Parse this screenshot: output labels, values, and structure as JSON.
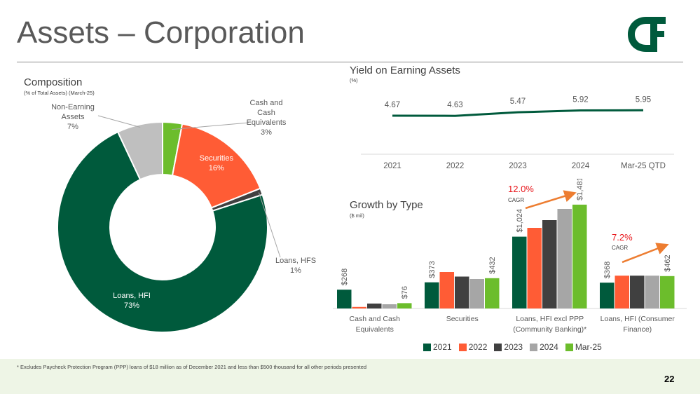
{
  "slide": {
    "title": "Assets – Corporation",
    "page_number": "22",
    "footnote": "* Excludes Paycheck Protection Program (PPP) loans of $18 million as of December 2021 and less than $500 thousand for all other periods presented",
    "logo_text": "C&F"
  },
  "colors": {
    "dark_green": "#005a3c",
    "orange": "#ff5c35",
    "dark_gray": "#404040",
    "light_gray": "#a6a6a6",
    "lime": "#6cbd2c"
  },
  "composition": {
    "title": "Composition",
    "subtitle": "(% of Total Assets) (March-25)"
  },
  "yield": {
    "title": "Yield on Earning Assets",
    "subtitle": "(%)"
  },
  "growth": {
    "title": "Growth by Type",
    "subtitle": "($ mil)",
    "cagr": [
      {
        "pct": "12.0%",
        "label": "CAGR"
      },
      {
        "pct": "7.2%",
        "label": "CAGR"
      }
    ]
  },
  "chart_data": [
    {
      "type": "pie",
      "title": "Composition",
      "subtitle": "(% of Total Assets) (March-25)",
      "slices": [
        {
          "label": "Cash and Cash Equivalents",
          "value": 3,
          "text": "3%",
          "color": "#6cbd2c"
        },
        {
          "label": "Securities",
          "value": 16,
          "text": "16%",
          "color": "#ff5c35"
        },
        {
          "label": "Loans, HFS",
          "value": 1,
          "text": "1%",
          "color": "#404040"
        },
        {
          "label": "Loans, HFI",
          "value": 73,
          "text": "73%",
          "color": "#005a3c"
        },
        {
          "label": "Non-Earning Assets",
          "value": 7,
          "text": "7%",
          "color": "#bfbfbf"
        }
      ]
    },
    {
      "type": "line",
      "title": "Yield on Earning Assets",
      "subtitle": "(%)",
      "categories": [
        "2021",
        "2022",
        "2023",
        "2024",
        "Mar-25 QTD"
      ],
      "series": [
        {
          "values": [
            4.67,
            4.63,
            5.47,
            5.92,
            5.95
          ],
          "labels": [
            "4.67",
            "4.63",
            "5.47",
            "5.92",
            "5.95"
          ],
          "color": "#005a3c"
        }
      ],
      "ylim": [
        0,
        12
      ]
    },
    {
      "type": "bar",
      "title": "Growth by Type",
      "subtitle": "($ mil)",
      "categories": [
        "Cash and Cash Equivalents",
        "Securities",
        "Loans, HFI excl PPP (Community Banking)*",
        "Loans, HFI (Consumer Finance)"
      ],
      "series": [
        {
          "name": "2021",
          "color": "#005a3c",
          "values": [
            268,
            373,
            1024,
            368
          ]
        },
        {
          "name": "2022",
          "color": "#ff5c35",
          "values": [
            22,
            520,
            1150,
            468
          ]
        },
        {
          "name": "2023",
          "color": "#404040",
          "values": [
            70,
            455,
            1260,
            468
          ]
        },
        {
          "name": "2024",
          "color": "#a6a6a6",
          "values": [
            60,
            420,
            1420,
            468
          ]
        },
        {
          "name": "Mar-25",
          "color": "#6cbd2c",
          "values": [
            76,
            432,
            1481,
            462
          ]
        }
      ],
      "data_labels": [
        {
          "category": 0,
          "series": 0,
          "text": "$268"
        },
        {
          "category": 0,
          "series": 4,
          "text": "$76"
        },
        {
          "category": 1,
          "series": 0,
          "text": "$373"
        },
        {
          "category": 1,
          "series": 4,
          "text": "$432"
        },
        {
          "category": 2,
          "series": 0,
          "text": "$1,024"
        },
        {
          "category": 2,
          "series": 4,
          "text": "$1,481"
        },
        {
          "category": 3,
          "series": 0,
          "text": "$368"
        },
        {
          "category": 3,
          "series": 4,
          "text": "$462"
        }
      ],
      "ylim": [
        0,
        1600
      ],
      "legend": "bottom"
    }
  ]
}
